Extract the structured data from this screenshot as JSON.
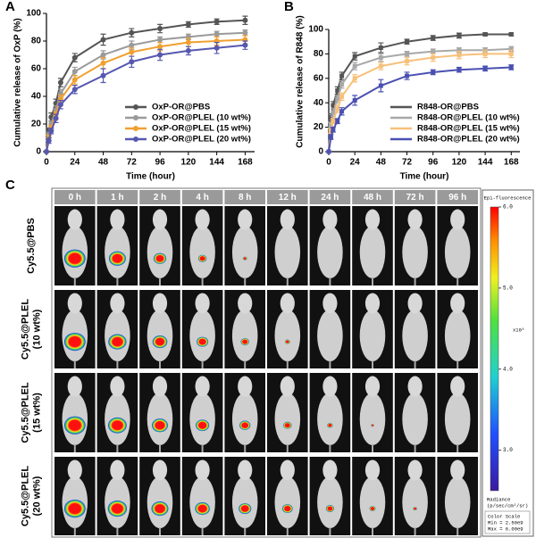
{
  "chart_data": [
    {
      "type": "line",
      "panel_label": "A",
      "xlabel": "Time (hour)",
      "ylabel": "Cumulative release of OxP (%)",
      "x": [
        0,
        2,
        4,
        8,
        12,
        24,
        48,
        72,
        96,
        120,
        144,
        168
      ],
      "xlim": [
        0,
        176
      ],
      "xticks": [
        0,
        24,
        48,
        72,
        96,
        120,
        144,
        168
      ],
      "ylim": [
        0,
        100
      ],
      "yticks": [
        0,
        20,
        40,
        60,
        80,
        100
      ],
      "marker": "circle",
      "legend": "lower right",
      "series": [
        {
          "name": "OxP-OR@PBS",
          "color": "#555555",
          "values": [
            0,
            15,
            25,
            35,
            50,
            68,
            81,
            86,
            89,
            92,
            94,
            95
          ],
          "errors": [
            0,
            2,
            3,
            3,
            3,
            3,
            4,
            3,
            3,
            2,
            2,
            3
          ]
        },
        {
          "name": "OxP-OR@PLEL (10 wt%)",
          "color": "#9a9a9a",
          "values": [
            0,
            12,
            20,
            30,
            42,
            58,
            70,
            77,
            81,
            83,
            85,
            86
          ],
          "errors": [
            0,
            2,
            2,
            3,
            3,
            3,
            3,
            3,
            2,
            2,
            2,
            2
          ]
        },
        {
          "name": "OxP-OR@PLEL (15 wt%)",
          "color": "#f0a030",
          "values": [
            0,
            10,
            17,
            27,
            38,
            52,
            64,
            72,
            76,
            79,
            80,
            81
          ],
          "errors": [
            0,
            2,
            2,
            2,
            3,
            3,
            4,
            3,
            3,
            3,
            3,
            3
          ]
        },
        {
          "name": "OxP-OR@PLEL (20 wt%)",
          "color": "#5658b0",
          "values": [
            0,
            8,
            15,
            24,
            34,
            45,
            55,
            65,
            70,
            73,
            75,
            77
          ],
          "errors": [
            0,
            2,
            2,
            3,
            3,
            3,
            5,
            4,
            4,
            3,
            4,
            3
          ]
        }
      ]
    },
    {
      "type": "line",
      "panel_label": "B",
      "xlabel": "Time (hour)",
      "ylabel": "Cumulative release of R848 (%)",
      "x": [
        0,
        2,
        4,
        8,
        12,
        24,
        48,
        72,
        96,
        120,
        144,
        168
      ],
      "xlim": [
        0,
        176
      ],
      "xticks": [
        0,
        24,
        48,
        72,
        96,
        120,
        144,
        168
      ],
      "ylim": [
        0,
        100
      ],
      "yticks": [
        0,
        20,
        40,
        60,
        80,
        100
      ],
      "marker": "square",
      "legend": "lower right",
      "series": [
        {
          "name": "R848-OR@PBS",
          "color": "#555555",
          "values": [
            0,
            28,
            38,
            50,
            62,
            78,
            85,
            90,
            93,
            95,
            96,
            96
          ],
          "errors": [
            0,
            3,
            3,
            3,
            3,
            3,
            4,
            2,
            2,
            2,
            1,
            1
          ]
        },
        {
          "name": "R848-OR@PLEL (10 wt%)",
          "color": "#a8a8a8",
          "values": [
            0,
            22,
            32,
            43,
            55,
            70,
            77,
            80,
            82,
            83,
            83,
            84
          ],
          "errors": [
            0,
            2,
            3,
            3,
            3,
            3,
            3,
            2,
            2,
            2,
            2,
            2
          ]
        },
        {
          "name": "R848-OR@PLEL (15 wt%)",
          "color": "#f7c07a",
          "values": [
            0,
            17,
            25,
            35,
            45,
            60,
            70,
            74,
            77,
            79,
            80,
            80
          ],
          "errors": [
            0,
            2,
            2,
            3,
            3,
            3,
            3,
            3,
            3,
            3,
            3,
            3
          ]
        },
        {
          "name": "R848-OR@PLEL (20 wt%)",
          "color": "#4a50b0",
          "values": [
            0,
            12,
            18,
            25,
            33,
            42,
            54,
            62,
            65,
            67,
            68,
            69
          ],
          "errors": [
            0,
            2,
            2,
            2,
            3,
            4,
            5,
            3,
            2,
            2,
            2,
            2
          ]
        }
      ]
    }
  ],
  "panel_c": {
    "label": "C",
    "timepoints": [
      "0 h",
      "1 h",
      "2 h",
      "4 h",
      "8 h",
      "12 h",
      "24 h",
      "48 h",
      "72 h",
      "96 h"
    ],
    "groups": [
      [
        "Cy5.5@PBS"
      ],
      [
        "Cy5.5@PLEL",
        "(10 wt%)"
      ],
      [
        "Cy5.5@PLEL",
        "(15 wt%)"
      ],
      [
        "Cy5.5@PLEL",
        "(20 wt%)"
      ]
    ],
    "colorbar": {
      "title": "Epi-fluorescence",
      "range": [
        2.5,
        6.0
      ],
      "ticks": [
        {
          "value": 6,
          "label": "6.0"
        },
        {
          "value": 5,
          "label": "5.0"
        },
        {
          "value": 4,
          "label": "4.0"
        },
        {
          "value": 3,
          "label": "3.0"
        }
      ],
      "exponent": "x10⁹",
      "unit_lines": [
        "Radiance",
        "(p/sec/cm²/sr)"
      ],
      "scale_lines": [
        "Color Scale",
        "Min = 2.50e9",
        "Max = 6.00e9"
      ]
    }
  }
}
